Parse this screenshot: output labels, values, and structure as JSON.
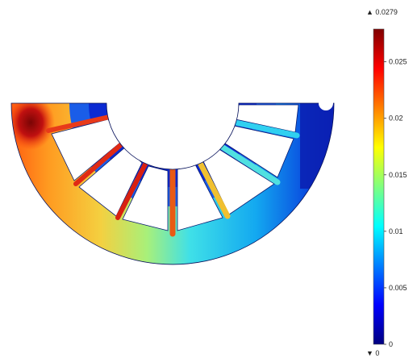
{
  "colorbar": {
    "max_label": "▲ 0.0279",
    "min_label": "▼ 0",
    "max_value": 0.0279,
    "min_value": 0,
    "ticks": [
      {
        "value": 0.025,
        "label": "0.025"
      },
      {
        "value": 0.02,
        "label": "0.02"
      },
      {
        "value": 0.015,
        "label": "0.015"
      },
      {
        "value": 0.01,
        "label": "0.01"
      },
      {
        "value": 0.005,
        "label": "0.005"
      },
      {
        "value": 0,
        "label": "0"
      }
    ],
    "colormap": [
      "#00007f",
      "#0000ff",
      "#007fff",
      "#00ffff",
      "#7fff7f",
      "#ffff00",
      "#ff7f00",
      "#ff0000",
      "#7f0000"
    ]
  },
  "colors": {
    "background": "#ffffff",
    "hub_low": "#0a1fd8",
    "rim_mid": "#19c7e6",
    "rim_high": "#f0a020",
    "hotspot": "#8a0a0a",
    "spoke_core": "#e02010",
    "spoke_edge": "#10b0e8"
  }
}
